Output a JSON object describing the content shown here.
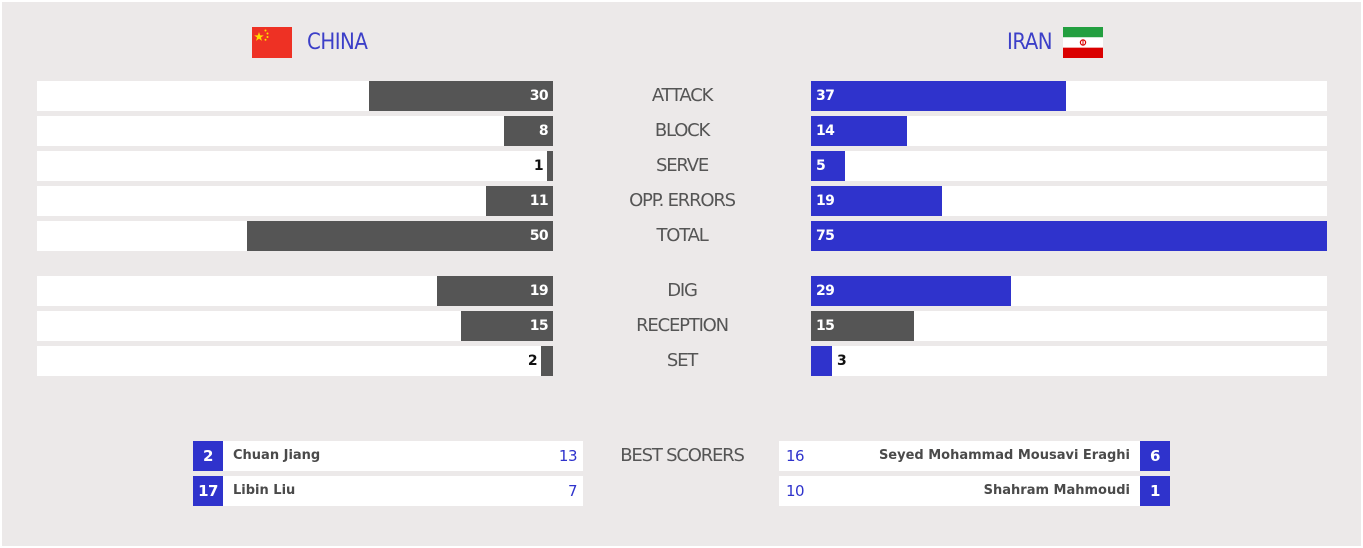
{
  "header": {
    "home": {
      "name": "CHINA",
      "flag_icon": "china-flag-icon"
    },
    "away": {
      "name": "IRAN",
      "flag_icon": "iran-flag-icon"
    }
  },
  "colors": {
    "home_bar": "#555555",
    "away_bar": "#2f33cc",
    "accent": "#3c3fc8"
  },
  "stats": [
    {
      "label": "ATTACK",
      "home": 30,
      "away": 37
    },
    {
      "label": "BLOCK",
      "home": 8,
      "away": 14
    },
    {
      "label": "SERVE",
      "home": 1,
      "away": 5
    },
    {
      "label": "OPP. ERRORS",
      "home": 11,
      "away": 19
    },
    {
      "label": "TOTAL",
      "home": 50,
      "away": 75
    },
    {
      "label": "DIG",
      "home": 19,
      "away": 29
    },
    {
      "label": "RECEPTION",
      "home": 15,
      "away": 15
    },
    {
      "label": "SET",
      "home": 2,
      "away": 3
    }
  ],
  "best_scorers": {
    "label": "BEST SCORERS",
    "home": [
      {
        "number": "2",
        "name": "Chuan Jiang",
        "points": "13"
      },
      {
        "number": "17",
        "name": "Libin Liu",
        "points": "7"
      }
    ],
    "away": [
      {
        "number": "6",
        "name": "Seyed Mohammad Mousavi Eraghi",
        "points": "16"
      },
      {
        "number": "1",
        "name": "Shahram Mahmoudi",
        "points": "10"
      }
    ]
  }
}
